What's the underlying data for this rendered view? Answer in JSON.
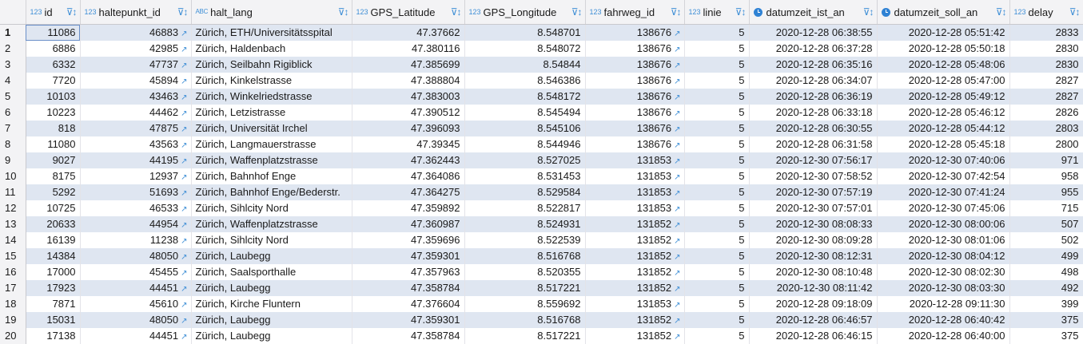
{
  "columns": [
    {
      "label": "id",
      "type": "123"
    },
    {
      "label": "haltepunkt_id",
      "type": "123"
    },
    {
      "label": "halt_lang",
      "type": "ABC"
    },
    {
      "label": "GPS_Latitude",
      "type": "123"
    },
    {
      "label": "GPS_Longitude",
      "type": "123"
    },
    {
      "label": "fahrweg_id",
      "type": "123"
    },
    {
      "label": "linie",
      "type": "123"
    },
    {
      "label": "datumzeit_ist_an",
      "type": "clock"
    },
    {
      "label": "datumzeit_soll_an",
      "type": "clock"
    },
    {
      "label": "delay",
      "type": "123"
    }
  ],
  "rows": [
    [
      "1",
      "11086",
      "46883",
      "Zürich, ETH/Universitätsspital",
      "47.37662",
      "8.548701",
      "138676",
      "5",
      "2020-12-28 06:38:55",
      "2020-12-28 05:51:42",
      "2833"
    ],
    [
      "2",
      "6886",
      "42985",
      "Zürich, Haldenbach",
      "47.380116",
      "8.548072",
      "138676",
      "5",
      "2020-12-28 06:37:28",
      "2020-12-28 05:50:18",
      "2830"
    ],
    [
      "3",
      "6332",
      "47737",
      "Zürich, Seilbahn Rigiblick",
      "47.385699",
      "8.54844",
      "138676",
      "5",
      "2020-12-28 06:35:16",
      "2020-12-28 05:48:06",
      "2830"
    ],
    [
      "4",
      "7720",
      "45894",
      "Zürich, Kinkelstrasse",
      "47.388804",
      "8.546386",
      "138676",
      "5",
      "2020-12-28 06:34:07",
      "2020-12-28 05:47:00",
      "2827"
    ],
    [
      "5",
      "10103",
      "43463",
      "Zürich, Winkelriedstrasse",
      "47.383003",
      "8.548172",
      "138676",
      "5",
      "2020-12-28 06:36:19",
      "2020-12-28 05:49:12",
      "2827"
    ],
    [
      "6",
      "10223",
      "44462",
      "Zürich, Letzistrasse",
      "47.390512",
      "8.545494",
      "138676",
      "5",
      "2020-12-28 06:33:18",
      "2020-12-28 05:46:12",
      "2826"
    ],
    [
      "7",
      "818",
      "47875",
      "Zürich, Universität Irchel",
      "47.396093",
      "8.545106",
      "138676",
      "5",
      "2020-12-28 06:30:55",
      "2020-12-28 05:44:12",
      "2803"
    ],
    [
      "8",
      "11080",
      "43563",
      "Zürich, Langmauerstrasse",
      "47.39345",
      "8.544946",
      "138676",
      "5",
      "2020-12-28 06:31:58",
      "2020-12-28 05:45:18",
      "2800"
    ],
    [
      "9",
      "9027",
      "44195",
      "Zürich, Waffenplatzstrasse",
      "47.362443",
      "8.527025",
      "131853",
      "5",
      "2020-12-30 07:56:17",
      "2020-12-30 07:40:06",
      "971"
    ],
    [
      "10",
      "8175",
      "12937",
      "Zürich, Bahnhof Enge",
      "47.364086",
      "8.531453",
      "131853",
      "5",
      "2020-12-30 07:58:52",
      "2020-12-30 07:42:54",
      "958"
    ],
    [
      "11",
      "5292",
      "51693",
      "Zürich, Bahnhof Enge/Bederstr.",
      "47.364275",
      "8.529584",
      "131853",
      "5",
      "2020-12-30 07:57:19",
      "2020-12-30 07:41:24",
      "955"
    ],
    [
      "12",
      "10725",
      "46533",
      "Zürich, Sihlcity Nord",
      "47.359892",
      "8.522817",
      "131853",
      "5",
      "2020-12-30 07:57:01",
      "2020-12-30 07:45:06",
      "715"
    ],
    [
      "13",
      "20633",
      "44954",
      "Zürich, Waffenplatzstrasse",
      "47.360987",
      "8.524931",
      "131852",
      "5",
      "2020-12-30 08:08:33",
      "2020-12-30 08:00:06",
      "507"
    ],
    [
      "14",
      "16139",
      "11238",
      "Zürich, Sihlcity Nord",
      "47.359696",
      "8.522539",
      "131852",
      "5",
      "2020-12-30 08:09:28",
      "2020-12-30 08:01:06",
      "502"
    ],
    [
      "15",
      "14384",
      "48050",
      "Zürich, Laubegg",
      "47.359301",
      "8.516768",
      "131852",
      "5",
      "2020-12-30 08:12:31",
      "2020-12-30 08:04:12",
      "499"
    ],
    [
      "16",
      "17000",
      "45455",
      "Zürich, Saalsporthalle",
      "47.357963",
      "8.520355",
      "131852",
      "5",
      "2020-12-30 08:10:48",
      "2020-12-30 08:02:30",
      "498"
    ],
    [
      "17",
      "17923",
      "44451",
      "Zürich, Laubegg",
      "47.358784",
      "8.517221",
      "131852",
      "5",
      "2020-12-30 08:11:42",
      "2020-12-30 08:03:30",
      "492"
    ],
    [
      "18",
      "7871",
      "45610",
      "Zürich, Kirche Fluntern",
      "47.376604",
      "8.559692",
      "131853",
      "5",
      "2020-12-28 09:18:09",
      "2020-12-28 09:11:30",
      "399"
    ],
    [
      "19",
      "15031",
      "48050",
      "Zürich, Laubegg",
      "47.359301",
      "8.516768",
      "131852",
      "5",
      "2020-12-28 06:46:57",
      "2020-12-28 06:40:42",
      "375"
    ],
    [
      "20",
      "17138",
      "44451",
      "Zürich, Laubegg",
      "47.358784",
      "8.517221",
      "131852",
      "5",
      "2020-12-28 06:46:15",
      "2020-12-28 06:40:00",
      "375"
    ]
  ]
}
